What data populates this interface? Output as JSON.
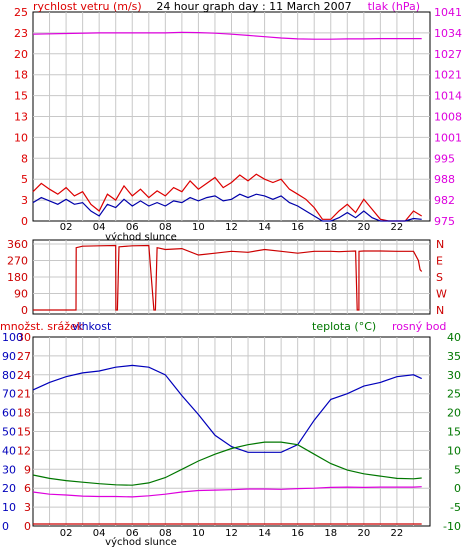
{
  "colors": {
    "wind": "#dd0000",
    "gust_blue": "#0000aa",
    "pressure": "#dd00dd",
    "direction": "#cc0000",
    "humidity": "#0000bb",
    "temperature": "#007700",
    "dewpoint": "#dd00dd",
    "precip": "#cc0000",
    "grid": "#c8c8c8",
    "bg": "#ffffff"
  },
  "chart_data": [
    {
      "type": "line",
      "title": "24 hour graph day : 11 March 2007",
      "ylabel_left": "rychlost vetru (m/s)",
      "ylabel_right": "tlak (hPa)",
      "xlabel": "východ slunce",
      "x_ticks": [
        "02",
        "04",
        "06",
        "08",
        "10",
        "12",
        "14",
        "16",
        "18",
        "20",
        "22"
      ],
      "y_left_ticks": [
        "0",
        "3",
        "5",
        "8",
        "10",
        "13",
        "15",
        "18",
        "20",
        "23",
        "25"
      ],
      "y_left_range": [
        0,
        25
      ],
      "y_right_ticks": [
        "975",
        "982",
        "988",
        "995",
        "1001",
        "1008",
        "1014",
        "1021",
        "1027",
        "1034",
        "1041"
      ],
      "y_right_range": [
        975,
        1041
      ],
      "grid": true,
      "series": [
        {
          "name": "rychlost vetru (m/s)",
          "color_key": "wind",
          "x": [
            0,
            0.5,
            1,
            1.5,
            2,
            2.5,
            3,
            3.5,
            4,
            4.5,
            5,
            5.5,
            6,
            6.5,
            7,
            7.5,
            8,
            8.5,
            9,
            9.5,
            10,
            10.5,
            11,
            11.5,
            12,
            12.5,
            13,
            13.5,
            14,
            14.5,
            15,
            15.5,
            16,
            16.5,
            17,
            17.5,
            18,
            18.5,
            19,
            19.5,
            20,
            20.5,
            21,
            21.5,
            22,
            22.5,
            23,
            23.5
          ],
          "values": [
            3.5,
            4.5,
            3.8,
            3.2,
            4.0,
            3.0,
            3.5,
            2.0,
            1.2,
            3.2,
            2.5,
            4.2,
            3.0,
            3.8,
            2.8,
            3.6,
            3.0,
            4.0,
            3.5,
            4.8,
            3.8,
            4.5,
            5.2,
            4.0,
            4.6,
            5.5,
            4.8,
            5.6,
            5.0,
            4.6,
            5.0,
            3.8,
            3.2,
            2.6,
            1.6,
            0.2,
            0.2,
            1.2,
            2.0,
            1.0,
            2.6,
            1.4,
            0.2,
            0.0,
            0.0,
            0.0,
            1.2,
            0.6
          ]
        },
        {
          "name": "gust",
          "color_key": "gust_blue",
          "x": [
            0,
            0.5,
            1,
            1.5,
            2,
            2.5,
            3,
            3.5,
            4,
            4.5,
            5,
            5.5,
            6,
            6.5,
            7,
            7.5,
            8,
            8.5,
            9,
            9.5,
            10,
            10.5,
            11,
            11.5,
            12,
            12.5,
            13,
            13.5,
            14,
            14.5,
            15,
            15.5,
            16,
            16.5,
            17,
            17.5,
            18,
            18.5,
            19,
            19.5,
            20,
            20.5,
            21,
            21.5,
            22,
            22.5,
            23,
            23.5
          ],
          "values": [
            2.2,
            2.8,
            2.4,
            2.0,
            2.6,
            2.0,
            2.2,
            1.2,
            0.6,
            2.0,
            1.6,
            2.6,
            1.8,
            2.4,
            1.8,
            2.2,
            1.8,
            2.4,
            2.2,
            2.8,
            2.4,
            2.8,
            3.0,
            2.4,
            2.6,
            3.2,
            2.8,
            3.2,
            3.0,
            2.6,
            3.0,
            2.2,
            1.8,
            1.2,
            0.6,
            0.0,
            0.0,
            0.4,
            1.0,
            0.4,
            1.2,
            0.4,
            0.0,
            0.0,
            0.0,
            0.0,
            0.3,
            0.2
          ]
        },
        {
          "name": "tlak (hPa)",
          "color_key": "pressure",
          "axis": "right",
          "x": [
            0,
            2,
            4,
            6,
            8,
            9,
            10,
            11,
            12,
            13,
            14,
            15,
            16,
            17,
            18,
            19,
            20,
            21,
            22,
            23.5
          ],
          "values": [
            1034.0,
            1034.2,
            1034.4,
            1034.4,
            1034.4,
            1034.6,
            1034.5,
            1034.3,
            1034.0,
            1033.6,
            1033.2,
            1032.8,
            1032.5,
            1032.4,
            1032.4,
            1032.5,
            1032.5,
            1032.6,
            1032.6,
            1032.6
          ]
        }
      ]
    },
    {
      "type": "line",
      "y_left_ticks": [
        "0",
        "90",
        "180",
        "270",
        "360"
      ],
      "y_left_range": [
        0,
        360
      ],
      "y_right_labels": [
        "N",
        "W",
        "S",
        "E",
        "N"
      ],
      "grid": true,
      "series": [
        {
          "name": "wind direction",
          "color_key": "direction",
          "x": [
            0,
            2.6,
            2.61,
            3,
            4,
            5,
            5.01,
            5.1,
            5.2,
            5.21,
            6,
            7,
            7.31,
            7.4,
            7.5,
            7.51,
            8,
            9,
            10,
            11,
            12,
            13,
            14,
            15,
            16,
            17,
            18,
            18.5,
            19,
            19.5,
            19.6,
            19.7,
            19.71,
            20,
            21,
            22,
            23,
            23.3,
            23.4,
            23.5
          ],
          "values": [
            0,
            0,
            340,
            348,
            350,
            352,
            0,
            0,
            345,
            345,
            350,
            352,
            0,
            0,
            340,
            340,
            330,
            335,
            300,
            310,
            320,
            315,
            330,
            320,
            310,
            320,
            320,
            318,
            320,
            322,
            0,
            0,
            320,
            322,
            322,
            320,
            320,
            270,
            220,
            210
          ]
        }
      ]
    },
    {
      "type": "line",
      "ylabel_left": "množst. srážek",
      "ylabel_left2": "vlhkost",
      "ylabel_right": "teplota (°C)",
      "ylabel_right2": "rosný bod",
      "xlabel": "východ slunce",
      "x_ticks": [
        "02",
        "04",
        "06",
        "08",
        "10",
        "12",
        "14",
        "16",
        "18",
        "20",
        "22"
      ],
      "y_left_ticks": [
        "0",
        "3",
        "6",
        "9",
        "12",
        "15",
        "18",
        "21",
        "24",
        "27",
        "30"
      ],
      "y_left2_ticks": [
        "0",
        "10",
        "20",
        "30",
        "40",
        "50",
        "60",
        "70",
        "80",
        "90",
        "100"
      ],
      "y_right_ticks": [
        "-10",
        "-5",
        "0",
        "5",
        "10",
        "15",
        "20",
        "25",
        "30",
        "35",
        "40"
      ],
      "y_right_range": [
        -10,
        40
      ],
      "y_left2_range": [
        0,
        100
      ],
      "grid": true,
      "series": [
        {
          "name": "vlhkost",
          "color_key": "humidity",
          "axis": "left2",
          "x": [
            0,
            1,
            2,
            3,
            4,
            5,
            6,
            7,
            8,
            9,
            10,
            11,
            12,
            13,
            14,
            15,
            16,
            17,
            18,
            19,
            20,
            21,
            22,
            23,
            23.5
          ],
          "values": [
            72,
            76,
            79,
            81,
            82,
            84,
            85,
            84,
            80,
            69,
            59,
            48,
            42,
            39,
            39,
            39,
            43,
            56,
            67,
            70,
            74,
            76,
            79,
            80,
            78
          ]
        },
        {
          "name": "teplota (°C)",
          "color_key": "temperature",
          "axis": "right",
          "x": [
            0,
            1,
            2,
            3,
            4,
            5,
            6,
            7,
            8,
            9,
            10,
            11,
            12,
            13,
            14,
            15,
            16,
            17,
            18,
            19,
            20,
            21,
            22,
            23,
            23.5
          ],
          "values": [
            3.5,
            2.6,
            2.0,
            1.6,
            1.2,
            0.9,
            0.8,
            1.4,
            2.8,
            5.0,
            7.2,
            9.0,
            10.5,
            11.5,
            12.2,
            12.2,
            11.5,
            9.0,
            6.5,
            4.8,
            3.8,
            3.2,
            2.6,
            2.5,
            2.7
          ]
        },
        {
          "name": "rosný bod",
          "color_key": "dewpoint",
          "axis": "right",
          "x": [
            0,
            1,
            2,
            3,
            4,
            5,
            6,
            7,
            8,
            9,
            10,
            11,
            12,
            13,
            14,
            15,
            16,
            17,
            18,
            19,
            20,
            21,
            22,
            23,
            23.5
          ],
          "values": [
            -1.0,
            -1.6,
            -1.8,
            -2.1,
            -2.2,
            -2.2,
            -2.3,
            -2.0,
            -1.6,
            -1.0,
            -0.6,
            -0.5,
            -0.4,
            -0.2,
            -0.2,
            -0.3,
            -0.1,
            0.0,
            0.2,
            0.3,
            0.2,
            0.3,
            0.3,
            0.3,
            0.4
          ]
        },
        {
          "name": "množst. srážek",
          "color_key": "precip",
          "axis": "left",
          "x": [
            0,
            23.5
          ],
          "values": [
            0,
            0
          ]
        }
      ]
    }
  ]
}
